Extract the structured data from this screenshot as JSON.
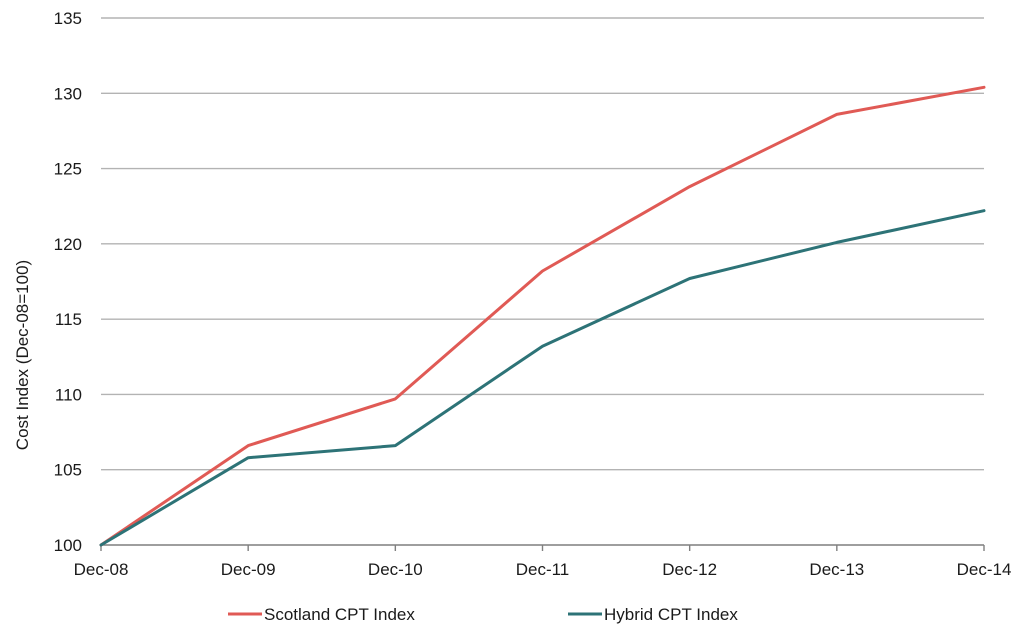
{
  "chart_data": {
    "type": "line",
    "title": "",
    "xlabel": "",
    "ylabel": "Cost Index (Dec-08=100)",
    "categories": [
      "Dec-08",
      "Dec-09",
      "Dec-10",
      "Dec-11",
      "Dec-12",
      "Dec-13",
      "Dec-14"
    ],
    "ylim": [
      100,
      135
    ],
    "yticks": [
      100,
      105,
      110,
      115,
      120,
      125,
      130,
      135
    ],
    "grid": true,
    "legend_position": "bottom",
    "series": [
      {
        "name": "Scotland CPT Index",
        "color": "#e05a55",
        "values": [
          100,
          106.6,
          109.7,
          118.2,
          123.8,
          128.6,
          130.4
        ]
      },
      {
        "name": "Hybrid CPT Index",
        "color": "#2d7377",
        "values": [
          100,
          105.8,
          106.6,
          113.2,
          117.7,
          120.1,
          122.2
        ]
      }
    ]
  }
}
